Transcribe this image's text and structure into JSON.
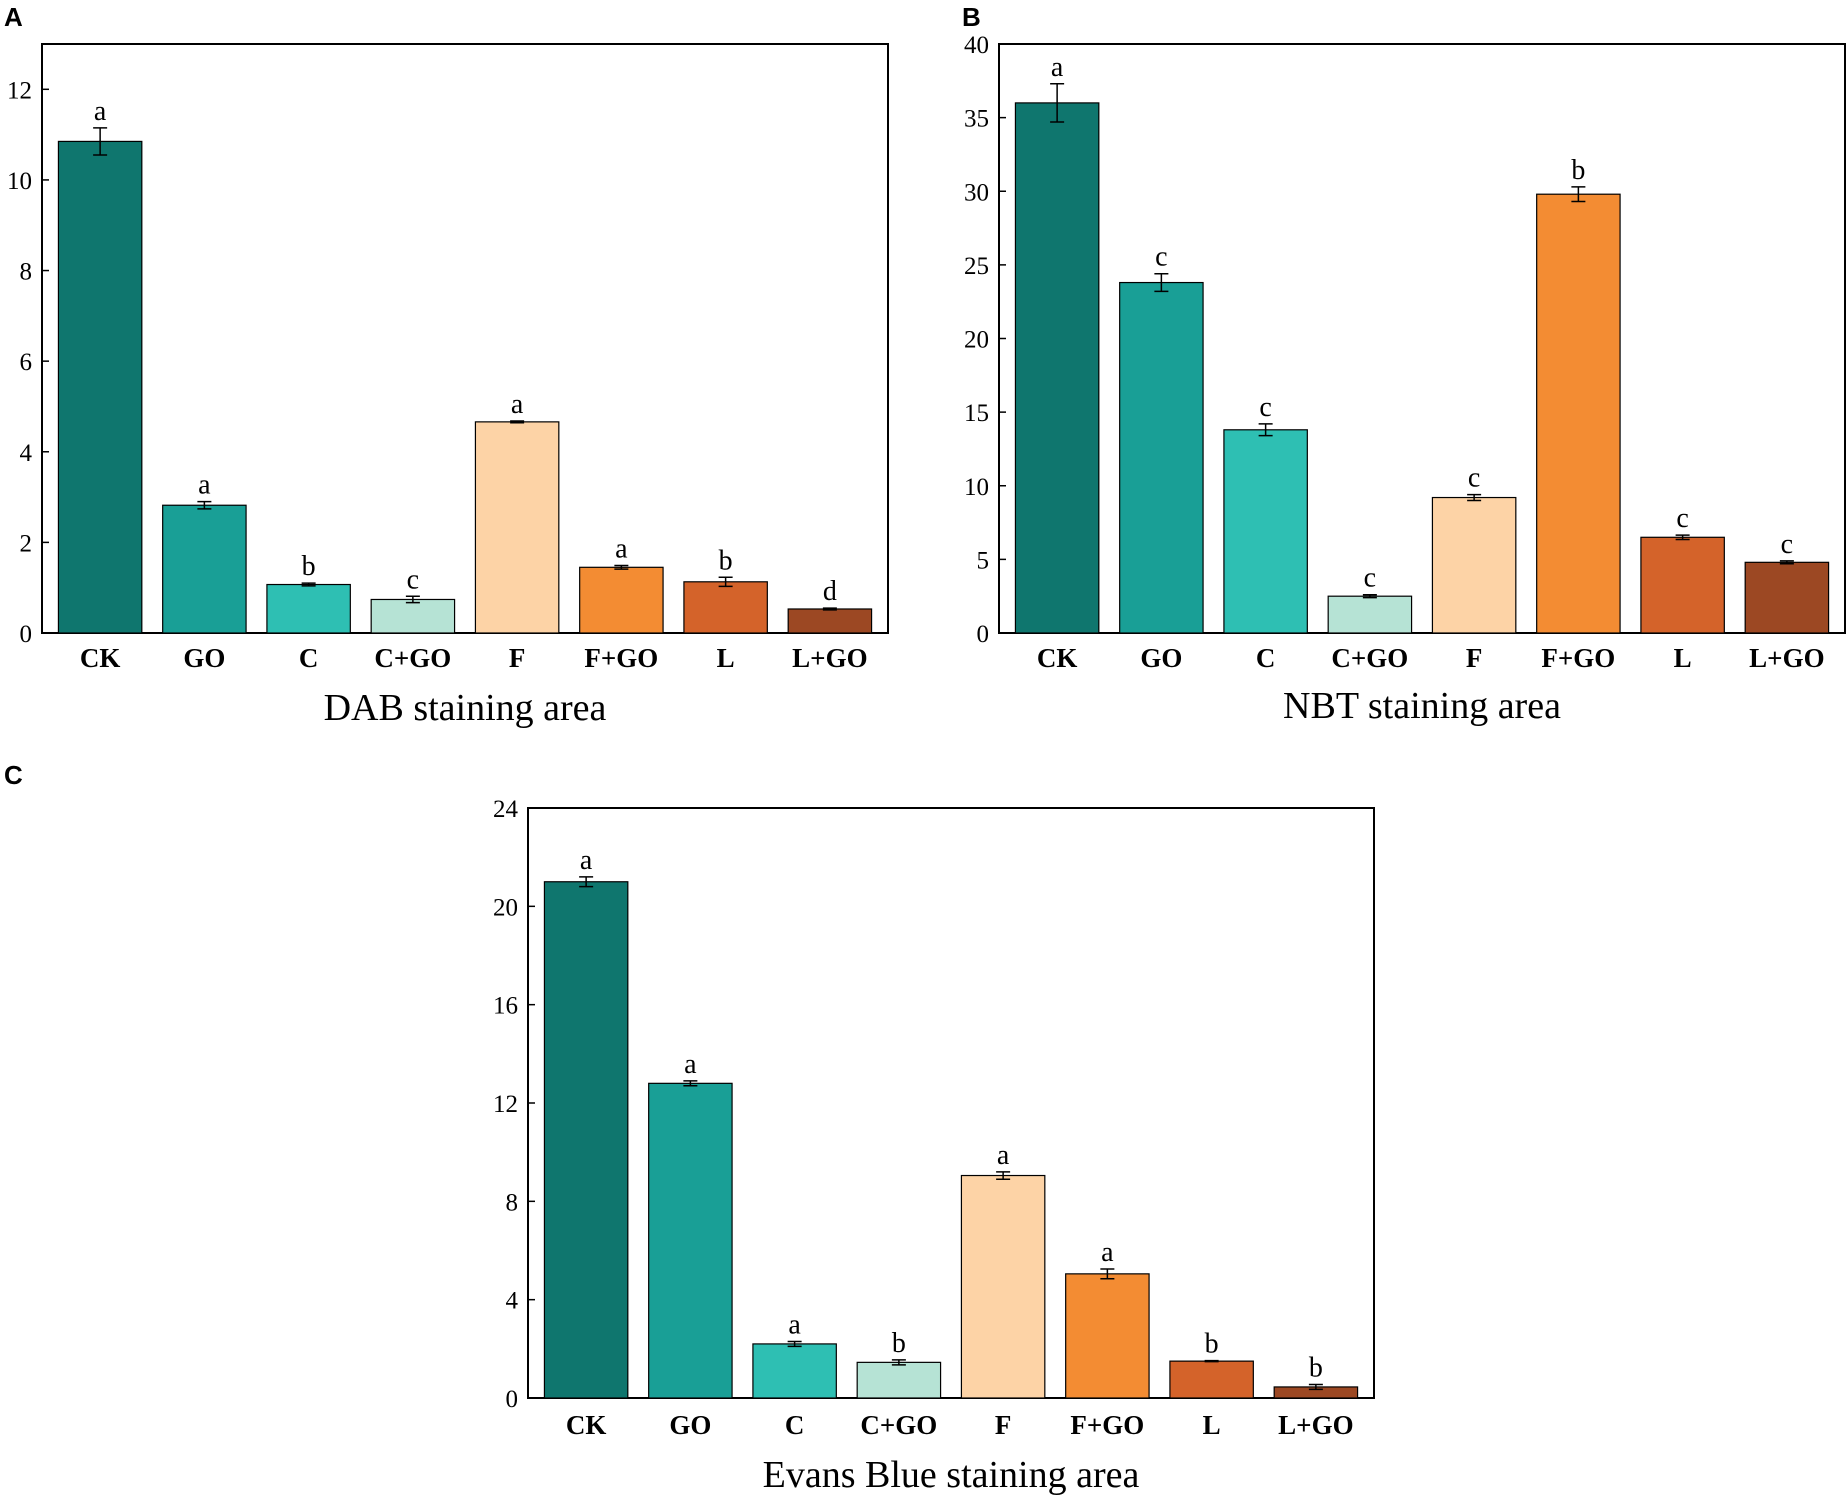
{
  "figure": {
    "panels": [
      "A",
      "B",
      "C"
    ]
  },
  "colors": {
    "CK": "#0f766e",
    "GO": "#199f96",
    "C": "#2ebfb3",
    "C+GO": "#b6e3d5",
    "F": "#fdd3a6",
    "F+GO": "#f38c33",
    "L": "#d4632a",
    "L+GO": "#9c4823"
  },
  "chart_data": [
    {
      "panel": "A",
      "type": "bar",
      "title": "",
      "xlabel": "DAB staining area",
      "ylabel": "",
      "categories": [
        "CK",
        "GO",
        "C",
        "C+GO",
        "F",
        "F+GO",
        "L",
        "L+GO"
      ],
      "values": [
        10.85,
        2.82,
        1.07,
        0.74,
        4.66,
        1.45,
        1.13,
        0.53
      ],
      "errors": [
        0.3,
        0.08,
        0.03,
        0.07,
        0.02,
        0.04,
        0.1,
        0.02
      ],
      "significance": [
        "a",
        "a",
        "b",
        "c",
        "a",
        "a",
        "b",
        "d"
      ],
      "ylim": [
        0,
        13
      ],
      "yticks": [
        0,
        2,
        4,
        6,
        8,
        10,
        12
      ]
    },
    {
      "panel": "B",
      "type": "bar",
      "title": "",
      "xlabel": "NBT staining area",
      "ylabel": "",
      "categories": [
        "CK",
        "GO",
        "C",
        "C+GO",
        "F",
        "F+GO",
        "L",
        "L+GO"
      ],
      "values": [
        36.0,
        23.8,
        13.8,
        2.5,
        9.2,
        29.8,
        6.5,
        4.8
      ],
      "errors": [
        1.3,
        0.6,
        0.4,
        0.1,
        0.2,
        0.5,
        0.15,
        0.1
      ],
      "significance": [
        "a",
        "c",
        "c",
        "c",
        "c",
        "b",
        "c",
        "c"
      ],
      "ylim": [
        0,
        40
      ],
      "yticks": [
        0,
        5,
        10,
        15,
        20,
        25,
        30,
        35,
        40
      ]
    },
    {
      "panel": "C",
      "type": "bar",
      "title": "",
      "xlabel": "Evans Blue staining area",
      "ylabel": "",
      "categories": [
        "CK",
        "GO",
        "C",
        "C+GO",
        "F",
        "F+GO",
        "L",
        "L+GO"
      ],
      "values": [
        21.0,
        12.8,
        2.2,
        1.45,
        9.05,
        5.05,
        1.5,
        0.45
      ],
      "errors": [
        0.2,
        0.1,
        0.1,
        0.1,
        0.15,
        0.2,
        0.02,
        0.1
      ],
      "significance": [
        "a",
        "a",
        "a",
        "b",
        "a",
        "a",
        "b",
        "b"
      ],
      "ylim": [
        0,
        24
      ],
      "yticks": [
        0,
        4,
        8,
        12,
        16,
        20,
        24
      ]
    }
  ]
}
